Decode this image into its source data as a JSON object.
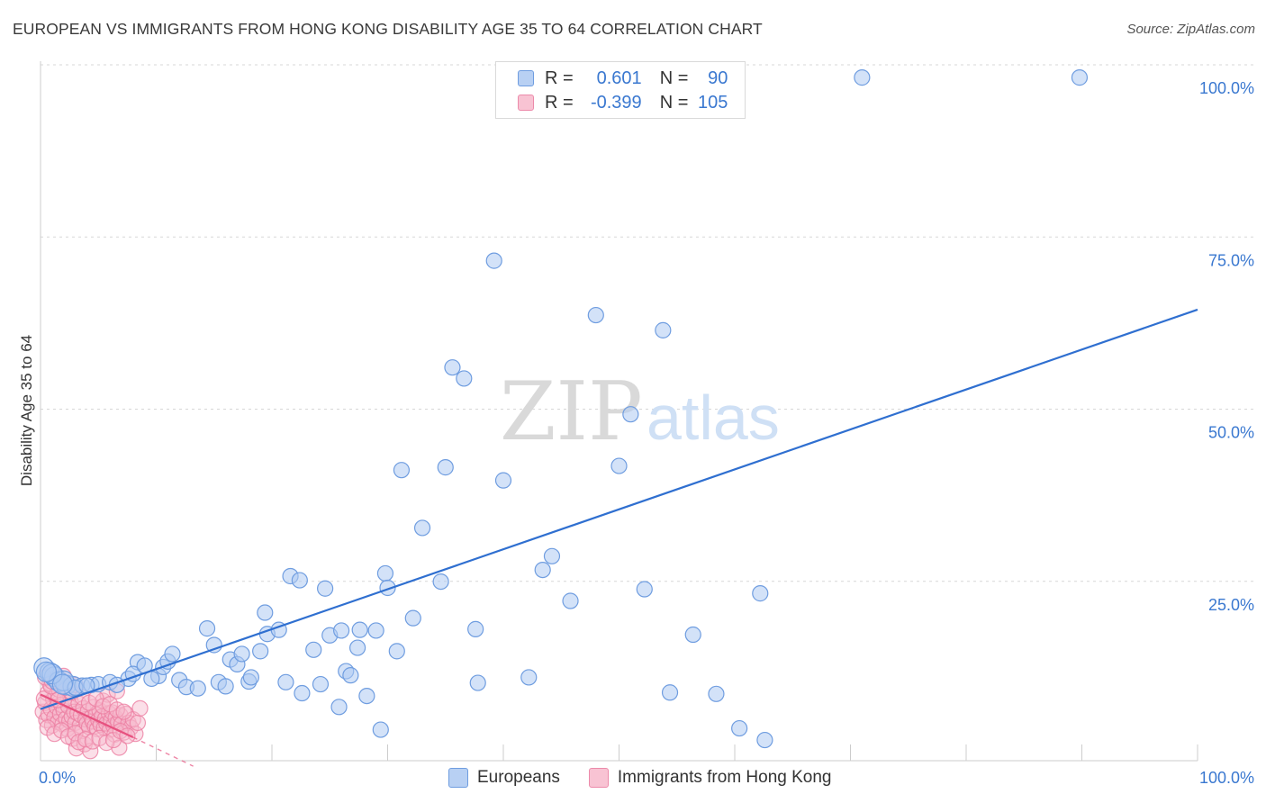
{
  "title": "EUROPEAN VS IMMIGRANTS FROM HONG KONG DISABILITY AGE 35 TO 64 CORRELATION CHART",
  "source": "Source: ZipAtlas.com",
  "watermark": {
    "zip": "ZIP",
    "atlas": "atlas"
  },
  "colors": {
    "blue_fill": "#aecbf2",
    "blue_stroke": "#6f9de0",
    "blue_line": "#2f6fd0",
    "pink_fill": "#f6b9cc",
    "pink_stroke": "#ec7fa2",
    "pink_line": "#e7517f",
    "axis_text": "#3a78d0",
    "grid": "#d7d7d7"
  },
  "legend": {
    "r_label": "R =",
    "n_label": "N =",
    "series": [
      {
        "name": "Europeans",
        "r": "0.601",
        "n": "90"
      },
      {
        "name": "Immigrants from Hong Kong",
        "r": "-0.399",
        "n": "105"
      }
    ]
  },
  "chart_data": {
    "type": "scatter",
    "title": "EUROPEAN VS IMMIGRANTS FROM HONG KONG DISABILITY AGE 35 TO 64 CORRELATION CHART",
    "xlabel": "",
    "ylabel": "Disability Age 35 to 64",
    "xlim": [
      0,
      100
    ],
    "ylim": [
      0,
      100
    ],
    "x_tick_labels": [
      {
        "value": 0,
        "label": "0.0%"
      },
      {
        "value": 100,
        "label": "100.0%"
      }
    ],
    "y_tick_labels": [
      {
        "value": 25,
        "label": "25.0%"
      },
      {
        "value": 50,
        "label": "50.0%"
      },
      {
        "value": 75,
        "label": "75.0%"
      },
      {
        "value": 100,
        "label": "100.0%"
      }
    ],
    "grid": true,
    "series": [
      {
        "name": "Europeans",
        "trend": {
          "x": [
            0,
            100
          ],
          "y": [
            7.5,
            65.5
          ],
          "style": "solid"
        },
        "points": [
          [
            0.3,
            13.5
          ],
          [
            0.8,
            12.8
          ],
          [
            1.2,
            12.2
          ],
          [
            1.6,
            11.5
          ],
          [
            2.2,
            11.0
          ],
          [
            2.8,
            10.8
          ],
          [
            3.6,
            10.9
          ],
          [
            4.4,
            11.0
          ],
          [
            5.0,
            11.1
          ],
          [
            6.0,
            11.4
          ],
          [
            7.6,
            11.9
          ],
          [
            8.4,
            14.3
          ],
          [
            8.0,
            12.6
          ],
          [
            9.0,
            13.8
          ],
          [
            10.2,
            12.3
          ],
          [
            10.6,
            13.6
          ],
          [
            11.0,
            14.4
          ],
          [
            11.4,
            15.5
          ],
          [
            12.0,
            11.7
          ],
          [
            12.6,
            10.7
          ],
          [
            13.6,
            10.5
          ],
          [
            14.4,
            19.2
          ],
          [
            15.0,
            16.8
          ],
          [
            15.4,
            11.4
          ],
          [
            16.0,
            10.8
          ],
          [
            16.4,
            14.7
          ],
          [
            17.0,
            14.0
          ],
          [
            17.4,
            15.5
          ],
          [
            18.0,
            11.5
          ],
          [
            18.2,
            12.1
          ],
          [
            19.0,
            15.9
          ],
          [
            19.4,
            21.5
          ],
          [
            19.6,
            18.4
          ],
          [
            20.6,
            19.0
          ],
          [
            21.2,
            11.4
          ],
          [
            21.6,
            26.8
          ],
          [
            22.6,
            9.8
          ],
          [
            22.4,
            26.2
          ],
          [
            23.6,
            16.1
          ],
          [
            24.2,
            11.1
          ],
          [
            24.6,
            25.0
          ],
          [
            25.0,
            18.2
          ],
          [
            25.8,
            7.8
          ],
          [
            26.0,
            18.9
          ],
          [
            26.4,
            13.0
          ],
          [
            26.8,
            12.4
          ],
          [
            27.4,
            16.4
          ],
          [
            27.6,
            19.0
          ],
          [
            28.2,
            9.4
          ],
          [
            29.0,
            18.9
          ],
          [
            29.4,
            4.5
          ],
          [
            29.8,
            27.2
          ],
          [
            30.0,
            25.1
          ],
          [
            30.8,
            15.9
          ],
          [
            31.2,
            42.2
          ],
          [
            32.2,
            20.7
          ],
          [
            33.0,
            33.8
          ],
          [
            34.6,
            26.0
          ],
          [
            35.0,
            42.6
          ],
          [
            35.6,
            57.1
          ],
          [
            36.6,
            55.5
          ],
          [
            37.6,
            19.1
          ],
          [
            37.8,
            11.3
          ],
          [
            39.2,
            72.6
          ],
          [
            40.0,
            40.7
          ],
          [
            42.2,
            12.1
          ],
          [
            43.4,
            27.7
          ],
          [
            44.2,
            29.7
          ],
          [
            45.8,
            23.2
          ],
          [
            48.0,
            64.7
          ],
          [
            50.0,
            42.8
          ],
          [
            51.0,
            50.3
          ],
          [
            52.2,
            24.9
          ],
          [
            53.8,
            62.5
          ],
          [
            54.4,
            9.9
          ],
          [
            56.4,
            18.3
          ],
          [
            58.4,
            9.7
          ],
          [
            60.4,
            4.7
          ],
          [
            62.2,
            24.3
          ],
          [
            62.6,
            3.0
          ],
          [
            71.0,
            99.2
          ],
          [
            89.8,
            99.2
          ],
          [
            2.0,
            11.6
          ],
          [
            3.0,
            10.6
          ],
          [
            4.0,
            10.9
          ],
          [
            1.0,
            12.6
          ],
          [
            6.6,
            11.0
          ],
          [
            9.6,
            11.9
          ],
          [
            0.5,
            12.9
          ],
          [
            1.9,
            11.1
          ]
        ]
      },
      {
        "name": "Immigrants from Hong Kong",
        "trend": {
          "x": [
            0,
            8.0
          ],
          "y": [
            9.6,
            3.4
          ],
          "style": "solid",
          "dashed_extension_to": [
            13.2,
            -0.8
          ]
        },
        "points": [
          [
            0.2,
            7.1
          ],
          [
            0.4,
            8.4
          ],
          [
            0.5,
            5.9
          ],
          [
            0.6,
            9.8
          ],
          [
            0.7,
            6.6
          ],
          [
            0.8,
            11.2
          ],
          [
            0.9,
            7.5
          ],
          [
            1.0,
            5.1
          ],
          [
            1.1,
            8.9
          ],
          [
            1.2,
            6.3
          ],
          [
            1.3,
            9.4
          ],
          [
            1.4,
            7.8
          ],
          [
            1.5,
            5.6
          ],
          [
            1.6,
            10.3
          ],
          [
            1.7,
            6.8
          ],
          [
            1.8,
            8.1
          ],
          [
            1.9,
            5.3
          ],
          [
            2.0,
            7.3
          ],
          [
            2.1,
            9.1
          ],
          [
            2.2,
            6.1
          ],
          [
            2.3,
            4.6
          ],
          [
            2.4,
            7.9
          ],
          [
            2.5,
            5.8
          ],
          [
            2.6,
            8.6
          ],
          [
            2.7,
            6.4
          ],
          [
            2.8,
            3.2
          ],
          [
            2.9,
            7.1
          ],
          [
            3.0,
            5.5
          ],
          [
            3.1,
            1.8
          ],
          [
            3.2,
            6.9
          ],
          [
            3.3,
            8.3
          ],
          [
            3.4,
            5.1
          ],
          [
            3.5,
            6.6
          ],
          [
            3.6,
            4.3
          ],
          [
            3.7,
            7.6
          ],
          [
            3.8,
            2.4
          ],
          [
            3.9,
            6.0
          ],
          [
            4.0,
            5.4
          ],
          [
            4.1,
            7.2
          ],
          [
            4.2,
            4.9
          ],
          [
            4.3,
            1.4
          ],
          [
            4.4,
            6.3
          ],
          [
            4.5,
            5.7
          ],
          [
            4.6,
            7.8
          ],
          [
            4.7,
            5.0
          ],
          [
            4.8,
            6.7
          ],
          [
            4.9,
            4.6
          ],
          [
            5.0,
            5.9
          ],
          [
            5.1,
            7.3
          ],
          [
            5.2,
            5.2
          ],
          [
            5.3,
            6.4
          ],
          [
            5.4,
            8.7
          ],
          [
            5.5,
            4.8
          ],
          [
            5.6,
            6.1
          ],
          [
            5.7,
            5.4
          ],
          [
            5.8,
            9.6
          ],
          [
            5.9,
            6.9
          ],
          [
            6.0,
            4.5
          ],
          [
            6.1,
            5.8
          ],
          [
            6.2,
            7.0
          ],
          [
            6.3,
            5.1
          ],
          [
            6.4,
            3.8
          ],
          [
            6.5,
            6.2
          ],
          [
            6.6,
            10.1
          ],
          [
            6.7,
            5.6
          ],
          [
            6.8,
            1.9
          ],
          [
            6.9,
            6.6
          ],
          [
            7.0,
            5.3
          ],
          [
            7.2,
            4.1
          ],
          [
            7.4,
            6.8
          ],
          [
            7.6,
            5.5
          ],
          [
            7.8,
            4.8
          ],
          [
            8.0,
            6.0
          ],
          [
            8.2,
            3.9
          ],
          [
            8.4,
            5.5
          ],
          [
            8.6,
            7.6
          ],
          [
            0.3,
            9.0
          ],
          [
            0.6,
            4.8
          ],
          [
            0.9,
            10.8
          ],
          [
            1.2,
            3.9
          ],
          [
            1.5,
            8.8
          ],
          [
            1.8,
            4.4
          ],
          [
            2.1,
            10.6
          ],
          [
            2.4,
            3.5
          ],
          [
            2.7,
            9.9
          ],
          [
            3.0,
            4.0
          ],
          [
            3.3,
            2.7
          ],
          [
            3.6,
            9.2
          ],
          [
            3.9,
            3.1
          ],
          [
            4.2,
            8.4
          ],
          [
            4.5,
            2.8
          ],
          [
            4.8,
            9.0
          ],
          [
            5.1,
            3.3
          ],
          [
            5.4,
            7.9
          ],
          [
            5.7,
            2.6
          ],
          [
            6.0,
            8.2
          ],
          [
            6.3,
            3.0
          ],
          [
            6.6,
            7.4
          ],
          [
            6.9,
            4.3
          ],
          [
            7.2,
            7.1
          ],
          [
            7.5,
            3.6
          ],
          [
            0.4,
            12.1
          ],
          [
            1.0,
            11.5
          ],
          [
            2.0,
            12.3
          ],
          [
            3.0,
            11.0
          ]
        ]
      }
    ]
  }
}
